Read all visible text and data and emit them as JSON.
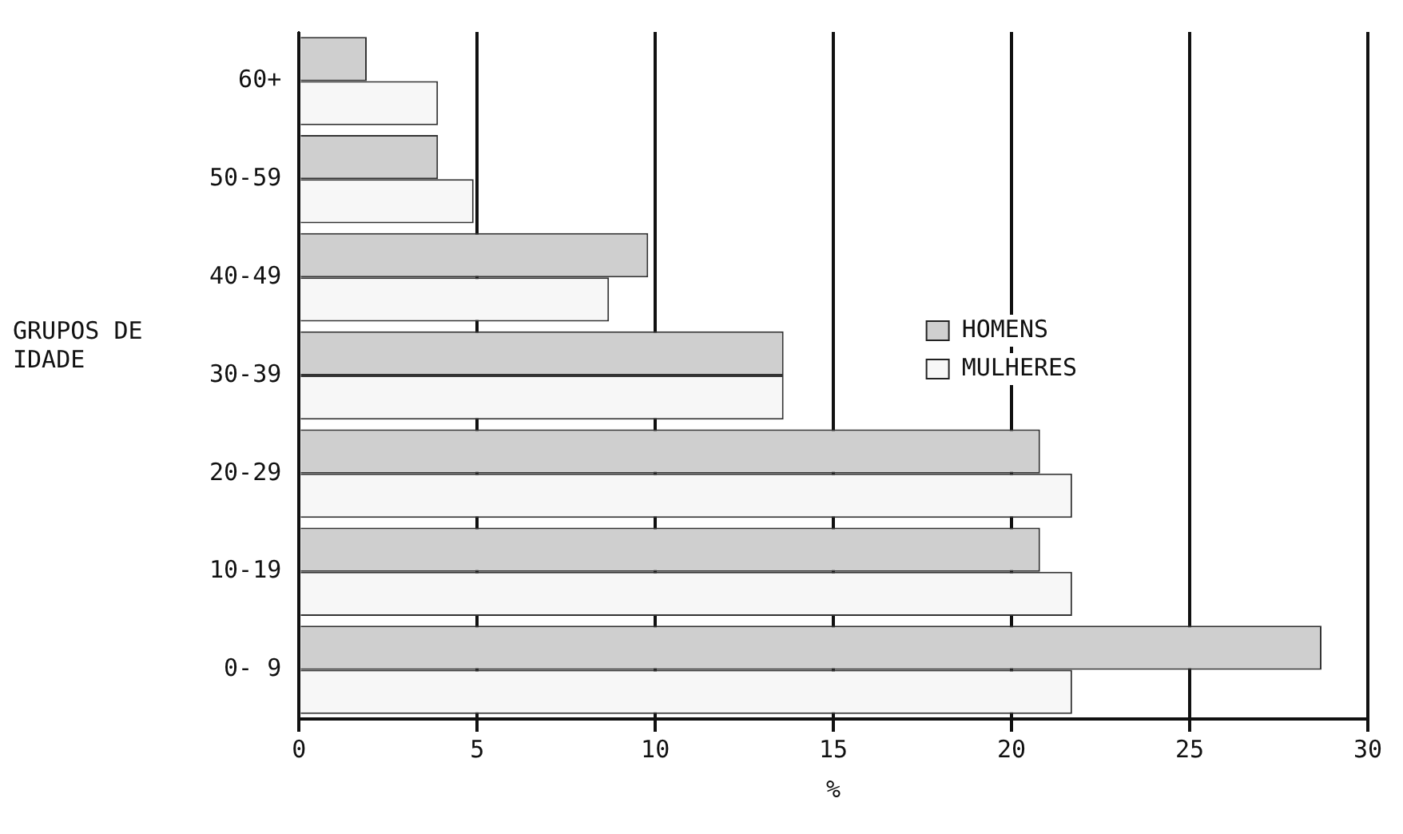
{
  "chart_data": {
    "type": "bar",
    "orientation": "horizontal",
    "xlabel": "%",
    "ylabel": "GRUPOS DE IDADE",
    "categories": [
      "60+",
      "50-59",
      "40-49",
      "30-39",
      "20-29",
      "10-19",
      "0- 9"
    ],
    "series": [
      {
        "name": "HOMENS",
        "color": "#cfcfcf",
        "values": [
          1.9,
          3.9,
          9.8,
          13.6,
          20.8,
          20.8,
          28.7
        ]
      },
      {
        "name": "MULHERES",
        "color": "#f7f7f7",
        "values": [
          3.9,
          4.9,
          8.7,
          13.6,
          21.7,
          21.7,
          21.7
        ]
      }
    ],
    "xlim": [
      0,
      30
    ],
    "xticks": [
      0,
      5,
      10,
      15,
      20,
      25,
      30
    ],
    "grid": "x",
    "legend": "right"
  }
}
